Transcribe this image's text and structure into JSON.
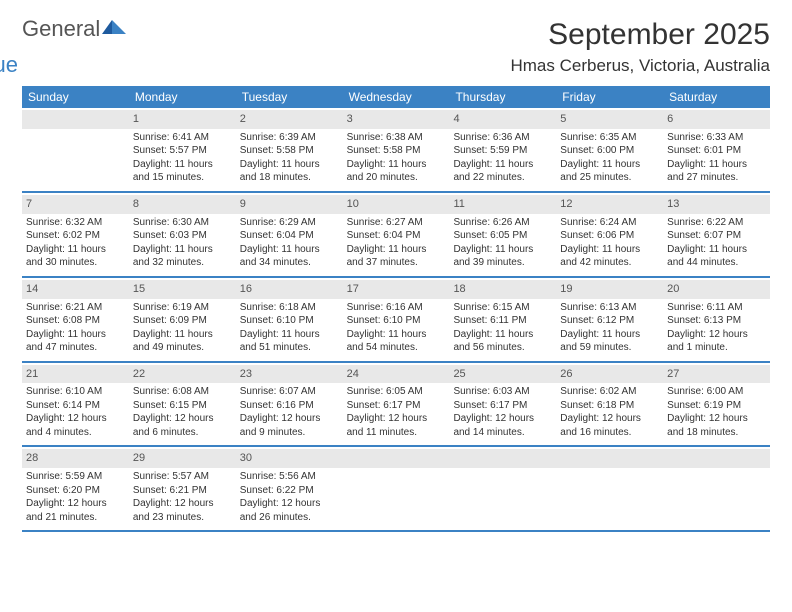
{
  "brand": {
    "part1": "General",
    "part2": "Blue"
  },
  "title": "September 2025",
  "location": "Hmas Cerberus, Victoria, Australia",
  "colors": {
    "header_bg": "#3b82c4",
    "divider": "#3b82c4",
    "daynum_bg": "#e8e8e8",
    "text": "#333333",
    "background": "#ffffff"
  },
  "day_headers": [
    "Sunday",
    "Monday",
    "Tuesday",
    "Wednesday",
    "Thursday",
    "Friday",
    "Saturday"
  ],
  "weeks": [
    [
      {
        "n": "",
        "sunrise": "",
        "sunset": "",
        "daylight": ""
      },
      {
        "n": "1",
        "sunrise": "6:41 AM",
        "sunset": "5:57 PM",
        "daylight": "11 hours and 15 minutes."
      },
      {
        "n": "2",
        "sunrise": "6:39 AM",
        "sunset": "5:58 PM",
        "daylight": "11 hours and 18 minutes."
      },
      {
        "n": "3",
        "sunrise": "6:38 AM",
        "sunset": "5:58 PM",
        "daylight": "11 hours and 20 minutes."
      },
      {
        "n": "4",
        "sunrise": "6:36 AM",
        "sunset": "5:59 PM",
        "daylight": "11 hours and 22 minutes."
      },
      {
        "n": "5",
        "sunrise": "6:35 AM",
        "sunset": "6:00 PM",
        "daylight": "11 hours and 25 minutes."
      },
      {
        "n": "6",
        "sunrise": "6:33 AM",
        "sunset": "6:01 PM",
        "daylight": "11 hours and 27 minutes."
      }
    ],
    [
      {
        "n": "7",
        "sunrise": "6:32 AM",
        "sunset": "6:02 PM",
        "daylight": "11 hours and 30 minutes."
      },
      {
        "n": "8",
        "sunrise": "6:30 AM",
        "sunset": "6:03 PM",
        "daylight": "11 hours and 32 minutes."
      },
      {
        "n": "9",
        "sunrise": "6:29 AM",
        "sunset": "6:04 PM",
        "daylight": "11 hours and 34 minutes."
      },
      {
        "n": "10",
        "sunrise": "6:27 AM",
        "sunset": "6:04 PM",
        "daylight": "11 hours and 37 minutes."
      },
      {
        "n": "11",
        "sunrise": "6:26 AM",
        "sunset": "6:05 PM",
        "daylight": "11 hours and 39 minutes."
      },
      {
        "n": "12",
        "sunrise": "6:24 AM",
        "sunset": "6:06 PM",
        "daylight": "11 hours and 42 minutes."
      },
      {
        "n": "13",
        "sunrise": "6:22 AM",
        "sunset": "6:07 PM",
        "daylight": "11 hours and 44 minutes."
      }
    ],
    [
      {
        "n": "14",
        "sunrise": "6:21 AM",
        "sunset": "6:08 PM",
        "daylight": "11 hours and 47 minutes."
      },
      {
        "n": "15",
        "sunrise": "6:19 AM",
        "sunset": "6:09 PM",
        "daylight": "11 hours and 49 minutes."
      },
      {
        "n": "16",
        "sunrise": "6:18 AM",
        "sunset": "6:10 PM",
        "daylight": "11 hours and 51 minutes."
      },
      {
        "n": "17",
        "sunrise": "6:16 AM",
        "sunset": "6:10 PM",
        "daylight": "11 hours and 54 minutes."
      },
      {
        "n": "18",
        "sunrise": "6:15 AM",
        "sunset": "6:11 PM",
        "daylight": "11 hours and 56 minutes."
      },
      {
        "n": "19",
        "sunrise": "6:13 AM",
        "sunset": "6:12 PM",
        "daylight": "11 hours and 59 minutes."
      },
      {
        "n": "20",
        "sunrise": "6:11 AM",
        "sunset": "6:13 PM",
        "daylight": "12 hours and 1 minute."
      }
    ],
    [
      {
        "n": "21",
        "sunrise": "6:10 AM",
        "sunset": "6:14 PM",
        "daylight": "12 hours and 4 minutes."
      },
      {
        "n": "22",
        "sunrise": "6:08 AM",
        "sunset": "6:15 PM",
        "daylight": "12 hours and 6 minutes."
      },
      {
        "n": "23",
        "sunrise": "6:07 AM",
        "sunset": "6:16 PM",
        "daylight": "12 hours and 9 minutes."
      },
      {
        "n": "24",
        "sunrise": "6:05 AM",
        "sunset": "6:17 PM",
        "daylight": "12 hours and 11 minutes."
      },
      {
        "n": "25",
        "sunrise": "6:03 AM",
        "sunset": "6:17 PM",
        "daylight": "12 hours and 14 minutes."
      },
      {
        "n": "26",
        "sunrise": "6:02 AM",
        "sunset": "6:18 PM",
        "daylight": "12 hours and 16 minutes."
      },
      {
        "n": "27",
        "sunrise": "6:00 AM",
        "sunset": "6:19 PM",
        "daylight": "12 hours and 18 minutes."
      }
    ],
    [
      {
        "n": "28",
        "sunrise": "5:59 AM",
        "sunset": "6:20 PM",
        "daylight": "12 hours and 21 minutes."
      },
      {
        "n": "29",
        "sunrise": "5:57 AM",
        "sunset": "6:21 PM",
        "daylight": "12 hours and 23 minutes."
      },
      {
        "n": "30",
        "sunrise": "5:56 AM",
        "sunset": "6:22 PM",
        "daylight": "12 hours and 26 minutes."
      },
      {
        "n": "",
        "sunrise": "",
        "sunset": "",
        "daylight": ""
      },
      {
        "n": "",
        "sunrise": "",
        "sunset": "",
        "daylight": ""
      },
      {
        "n": "",
        "sunrise": "",
        "sunset": "",
        "daylight": ""
      },
      {
        "n": "",
        "sunrise": "",
        "sunset": "",
        "daylight": ""
      }
    ]
  ],
  "labels": {
    "sunrise": "Sunrise: ",
    "sunset": "Sunset: ",
    "daylight": "Daylight: "
  }
}
